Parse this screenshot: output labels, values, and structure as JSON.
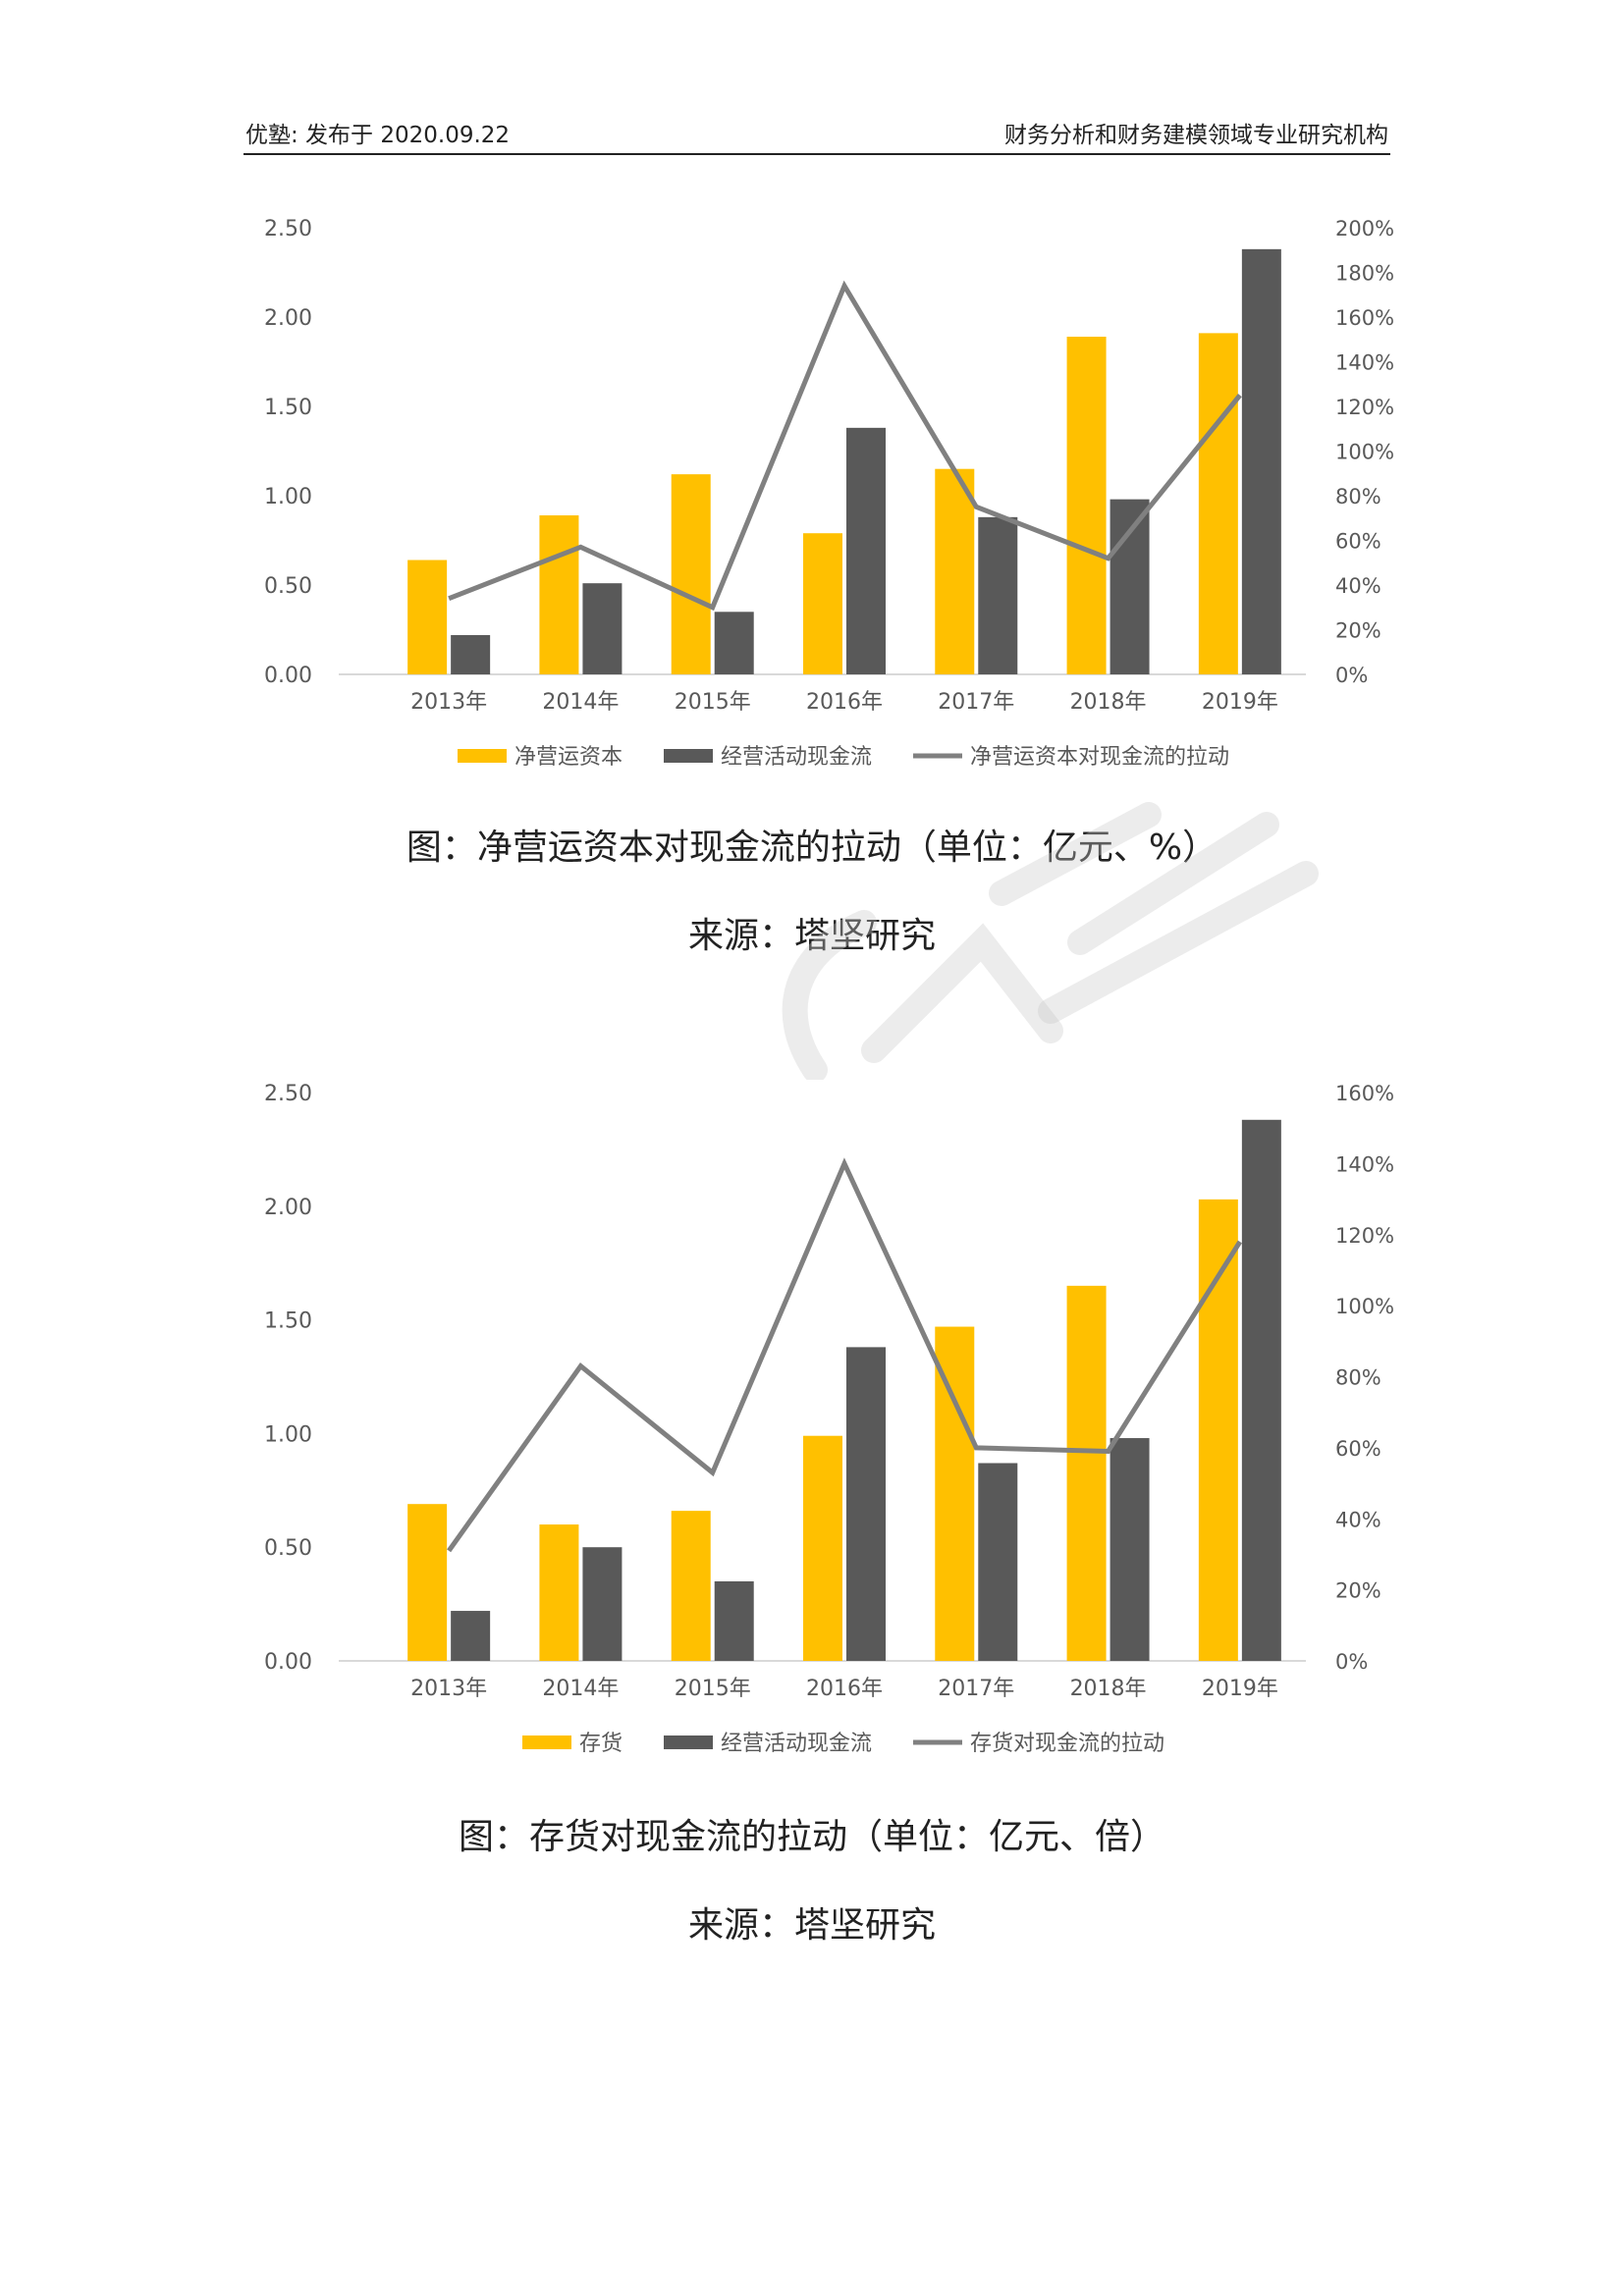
{
  "header": {
    "left": "优塾: 发布于 2020.09.22",
    "right": "财务分析和财务建模领域专业研究机构"
  },
  "colors": {
    "bar1": "#FFC000",
    "bar2": "#595959",
    "line": "#808080"
  },
  "captions": {
    "chart1_title": "图：净营运资本对现金流的拉动（单位：亿元、%）",
    "chart1_source": "来源：塔坚研究",
    "chart2_title": "图：存货对现金流的拉动（单位：亿元、倍）",
    "chart2_source": "来源：塔坚研究"
  },
  "chart_data": [
    {
      "type": "bar",
      "categories": [
        "2013年",
        "2014年",
        "2015年",
        "2016年",
        "2017年",
        "2018年",
        "2019年"
      ],
      "series": [
        {
          "name": "净营运资本",
          "kind": "bar",
          "axis": "left",
          "values": [
            0.64,
            0.89,
            1.12,
            0.79,
            1.15,
            1.89,
            1.91
          ]
        },
        {
          "name": "经营活动现金流",
          "kind": "bar",
          "axis": "left",
          "values": [
            0.22,
            0.51,
            0.35,
            1.38,
            0.88,
            0.98,
            2.38
          ]
        },
        {
          "name": "净营运资本对现金流的拉动",
          "kind": "line",
          "axis": "right",
          "values": [
            34,
            57,
            30,
            174,
            75,
            52,
            125
          ]
        }
      ],
      "ylim": [
        0,
        2.5
      ],
      "yticks": [
        "0.00",
        "0.50",
        "1.00",
        "1.50",
        "2.00",
        "2.50"
      ],
      "y2lim": [
        0,
        200
      ],
      "y2ticks": [
        "0%",
        "20%",
        "40%",
        "60%",
        "80%",
        "100%",
        "120%",
        "140%",
        "160%",
        "180%",
        "200%"
      ],
      "legend": "bottom"
    },
    {
      "type": "bar",
      "categories": [
        "2013年",
        "2014年",
        "2015年",
        "2016年",
        "2017年",
        "2018年",
        "2019年"
      ],
      "series": [
        {
          "name": "存货",
          "kind": "bar",
          "axis": "left",
          "values": [
            0.69,
            0.6,
            0.66,
            0.99,
            1.47,
            1.65,
            2.03
          ]
        },
        {
          "name": "经营活动现金流",
          "kind": "bar",
          "axis": "left",
          "values": [
            0.22,
            0.5,
            0.35,
            1.38,
            0.87,
            0.98,
            2.38
          ]
        },
        {
          "name": "存货对现金流的拉动",
          "kind": "line",
          "axis": "right",
          "values": [
            31,
            83,
            53,
            140,
            60,
            59,
            118
          ]
        }
      ],
      "ylim": [
        0,
        2.5
      ],
      "yticks": [
        "0.00",
        "0.50",
        "1.00",
        "1.50",
        "2.00",
        "2.50"
      ],
      "y2lim": [
        0,
        160
      ],
      "y2ticks": [
        "0%",
        "20%",
        "40%",
        "60%",
        "80%",
        "100%",
        "120%",
        "140%",
        "160%"
      ],
      "legend": "bottom"
    }
  ]
}
